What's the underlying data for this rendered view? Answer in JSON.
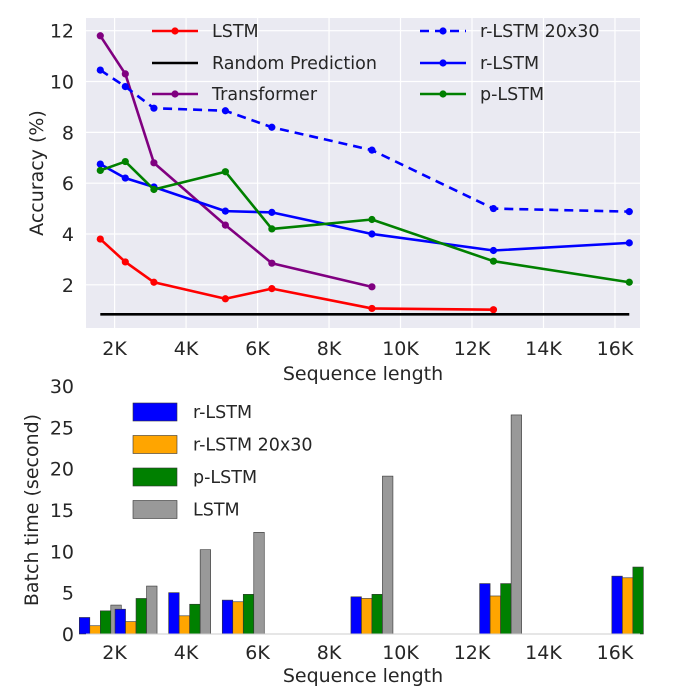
{
  "chart_data": [
    {
      "type": "line",
      "xlabel": "Sequence length",
      "ylabel": "Accuracy (%)",
      "xlim": [
        1200,
        16700
      ],
      "ylim": [
        0.3,
        12.5
      ],
      "x_ticks": [
        2000,
        4000,
        6000,
        8000,
        10000,
        12000,
        14000,
        16000
      ],
      "x_tick_labels": [
        "2K",
        "4K",
        "6K",
        "8K",
        "10K",
        "12K",
        "14K",
        "16K"
      ],
      "y_ticks": [
        2,
        4,
        6,
        8,
        10,
        12
      ],
      "y_tick_labels": [
        "2",
        "4",
        "6",
        "8",
        "10",
        "12"
      ],
      "grid": true,
      "legend_position": "top",
      "series": [
        {
          "name": "LSTM",
          "color": "#ff0000",
          "style": "solid",
          "marker": "dot",
          "x": [
            1600,
            2300,
            3100,
            5100,
            6400,
            9200,
            12600
          ],
          "y": [
            3.8,
            2.9,
            2.1,
            1.45,
            1.85,
            1.07,
            1.02
          ]
        },
        {
          "name": "Random Prediction",
          "color": "#000000",
          "style": "solid",
          "marker": "none",
          "x": [
            1600,
            16400
          ],
          "y": [
            0.84,
            0.84
          ]
        },
        {
          "name": "Transformer",
          "color": "#800080",
          "style": "solid",
          "marker": "dot",
          "x": [
            1600,
            2300,
            3100,
            5100,
            6400,
            9200
          ],
          "y": [
            11.8,
            10.3,
            6.8,
            4.35,
            2.85,
            1.92
          ]
        },
        {
          "name": "r-LSTM 20x30",
          "color": "#0000ff",
          "style": "dashed",
          "marker": "dot",
          "x": [
            1600,
            2300,
            3100,
            5100,
            6400,
            9200,
            12600,
            16400
          ],
          "y": [
            10.45,
            9.8,
            8.95,
            8.85,
            8.2,
            7.3,
            5.0,
            4.88
          ]
        },
        {
          "name": "r-LSTM",
          "color": "#0000ff",
          "style": "solid",
          "marker": "dot",
          "x": [
            1600,
            2300,
            3100,
            5100,
            6400,
            9200,
            12600,
            16400
          ],
          "y": [
            6.75,
            6.2,
            5.85,
            4.9,
            4.85,
            4.0,
            3.35,
            3.65
          ]
        },
        {
          "name": "p-LSTM",
          "color": "#008000",
          "style": "solid",
          "marker": "dot",
          "x": [
            1600,
            2300,
            3100,
            5100,
            6400,
            9200,
            12600,
            16400
          ],
          "y": [
            6.5,
            6.85,
            5.75,
            6.45,
            4.2,
            4.57,
            2.93,
            2.1
          ]
        }
      ]
    },
    {
      "type": "bar",
      "xlabel": "Sequence length",
      "ylabel": "Batch time (second)",
      "xlim": [
        1200,
        16700
      ],
      "ylim": [
        0,
        30
      ],
      "x_ticks": [
        2000,
        4000,
        6000,
        8000,
        10000,
        12000,
        14000,
        16000
      ],
      "x_tick_labels": [
        "2K",
        "4K",
        "6K",
        "8K",
        "10K",
        "12K",
        "14K",
        "16K"
      ],
      "y_ticks": [
        0,
        5,
        10,
        15,
        20,
        25,
        30
      ],
      "y_tick_labels": [
        "0",
        "5",
        "10",
        "15",
        "20",
        "25",
        "30"
      ],
      "grid": false,
      "legend_position": "upper-left",
      "groups": [
        1600,
        2600,
        4100,
        5600,
        9200,
        12800,
        16500
      ],
      "series": [
        {
          "name": "r-LSTM",
          "color": "#0000ff",
          "values": [
            2.0,
            3.0,
            5.0,
            4.1,
            4.5,
            6.1,
            7.0
          ]
        },
        {
          "name": "r-LSTM 20x30",
          "color": "#ffa500",
          "values": [
            1.0,
            1.5,
            2.2,
            3.9,
            4.3,
            4.6,
            6.8
          ]
        },
        {
          "name": "p-LSTM",
          "color": "#008000",
          "values": [
            2.8,
            4.3,
            3.6,
            4.8,
            4.8,
            6.1,
            8.1
          ]
        },
        {
          "name": "LSTM",
          "color": "#999999",
          "values": [
            3.5,
            5.8,
            10.2,
            12.3,
            19.1,
            26.5,
            null
          ]
        }
      ]
    }
  ]
}
